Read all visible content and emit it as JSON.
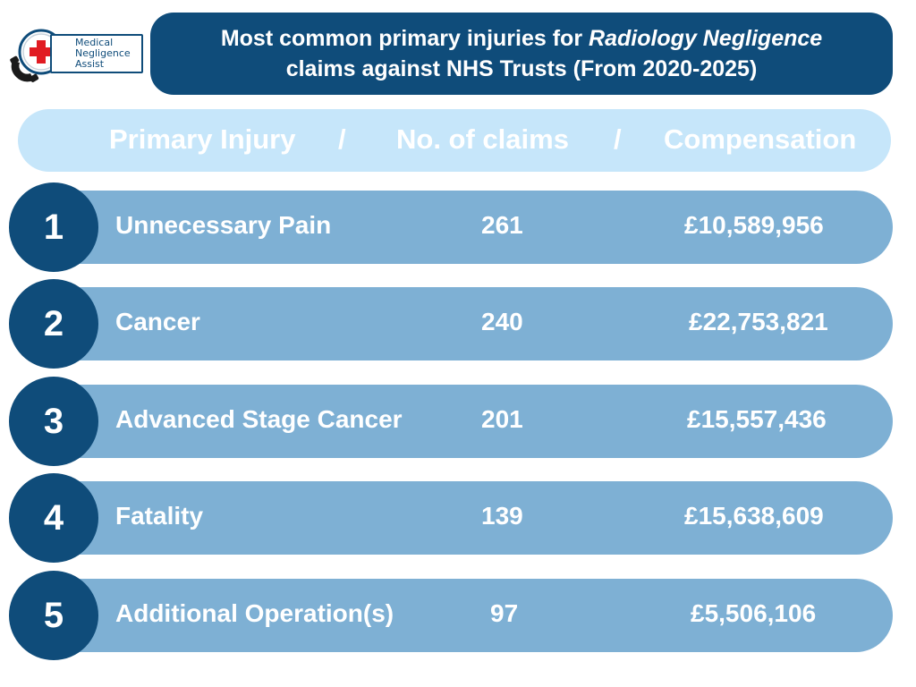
{
  "logo": {
    "text": "Medical\nNegligence\nAssist"
  },
  "title": {
    "line1_prefix": "Most common primary injuries for",
    "line1_emphasis": "Radiology Negligence",
    "line2": "claims against NHS Trusts (From 2020-2025)"
  },
  "chart_data": {
    "type": "table",
    "columns": [
      "Primary Injury",
      "No. of claims",
      "Compensation"
    ],
    "separator": "/",
    "rows": [
      {
        "rank": "1",
        "injury": "Unnecessary Pain",
        "claims": "261",
        "compensation": "£10,589,956"
      },
      {
        "rank": "2",
        "injury": "Cancer",
        "claims": "240",
        "compensation": "£22,753,821"
      },
      {
        "rank": "3",
        "injury": "Advanced Stage Cancer",
        "claims": "201",
        "compensation": "£15,557,436"
      },
      {
        "rank": "4",
        "injury": "Fatality",
        "claims": "139",
        "compensation": "£15,638,609"
      },
      {
        "rank": "5",
        "injury": "Additional Operation(s)",
        "claims": "97",
        "compensation": "£5,506,106"
      }
    ]
  },
  "colors": {
    "dark_blue": "#0f4c7a",
    "row_blue": "#7eb0d4",
    "header_blue": "#c6e6fa",
    "logo_red": "#e11b22"
  }
}
